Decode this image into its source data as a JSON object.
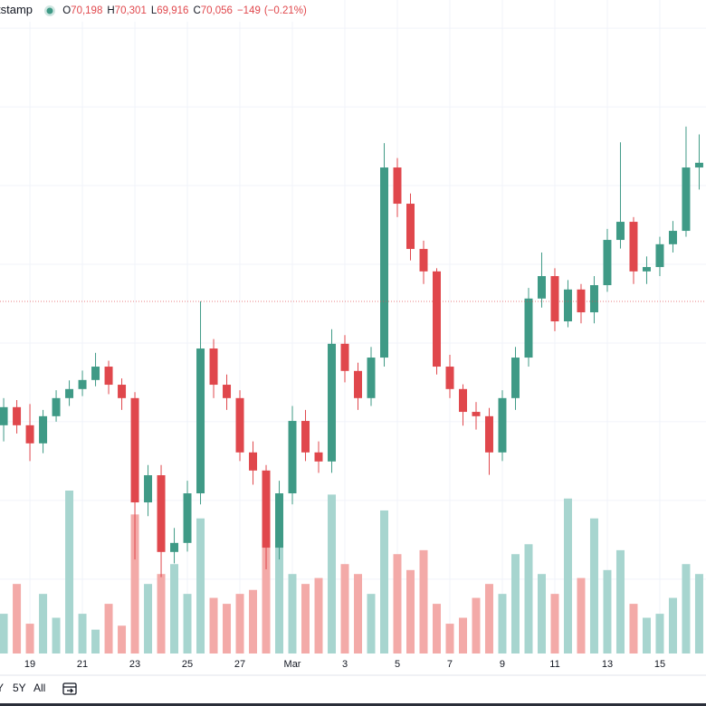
{
  "chart_data": {
    "type": "candlestick",
    "title": "tstamp",
    "ohlc": [
      {
        "name": "O",
        "value": 70198,
        "label": "70,198"
      },
      {
        "name": "H",
        "value": 70301,
        "label": "70,301"
      },
      {
        "name": "L",
        "value": 69916,
        "label": "69,916"
      },
      {
        "name": "C",
        "value": 70056,
        "label": "70,056"
      }
    ],
    "change": {
      "value": -149,
      "label": "−149"
    },
    "change_pct": {
      "value": -0.21,
      "label": "(−0.21%)"
    },
    "x": [
      0,
      0.5,
      1,
      1.5,
      2,
      2.5,
      3,
      3.5,
      4,
      4.5,
      5,
      5.5,
      6,
      6.5,
      7,
      7.5,
      8,
      8.5,
      9,
      9.5,
      10,
      10.5,
      11,
      11.5,
      12,
      12.5,
      13,
      13.5,
      14,
      14.5,
      15,
      15.5,
      16,
      16.5,
      17,
      17.5,
      18,
      18.5,
      19,
      19.5,
      20,
      20.5,
      21,
      21.5,
      22,
      22.5,
      23,
      23.5,
      24,
      24.5,
      25,
      25.5,
      26,
      26.5
    ],
    "open": [
      66910,
      67370,
      66910,
      66450,
      67140,
      67600,
      67830,
      68060,
      68400,
      67940,
      67600,
      64950,
      65640,
      63690,
      63920,
      65180,
      68860,
      67940,
      67600,
      66220,
      65760,
      63800,
      65180,
      67020,
      66220,
      65990,
      68980,
      68290,
      67600,
      68630,
      73460,
      72540,
      71390,
      70820,
      68400,
      67830,
      67250,
      67140,
      66220,
      67600,
      68630,
      70130,
      70700,
      69550,
      70360,
      69780,
      70470,
      71620,
      72080,
      70820,
      70930,
      71510,
      71850,
      73460
    ],
    "high": [
      67600,
      67550,
      67450,
      67300,
      67800,
      68050,
      68300,
      68750,
      68550,
      68100,
      67750,
      65900,
      65900,
      64300,
      65500,
      70060,
      69100,
      68200,
      67800,
      66500,
      65900,
      65500,
      67400,
      67300,
      66500,
      69350,
      69200,
      68500,
      68900,
      74080,
      73700,
      72800,
      71600,
      70900,
      68700,
      67950,
      67500,
      67350,
      67800,
      68900,
      70400,
      71300,
      70900,
      70600,
      70500,
      70700,
      71900,
      74100,
      72200,
      71200,
      71700,
      72100,
      74500,
      74300
    ],
    "low": [
      66500,
      66700,
      66000,
      66200,
      67000,
      67400,
      67650,
      67900,
      67700,
      67300,
      63500,
      64600,
      63050,
      63400,
      63700,
      64900,
      67600,
      67300,
      66000,
      65400,
      63250,
      63500,
      64900,
      66000,
      65700,
      65700,
      68000,
      67300,
      67400,
      68400,
      72200,
      71100,
      70500,
      68200,
      67600,
      66900,
      66800,
      65650,
      66000,
      67300,
      68400,
      69900,
      69300,
      69400,
      69500,
      69500,
      70300,
      71400,
      70500,
      70500,
      70700,
      71300,
      71700,
      72900
    ],
    "close": [
      67370,
      66910,
      66450,
      67140,
      67600,
      67830,
      68060,
      68400,
      67940,
      67600,
      64950,
      65640,
      63690,
      63920,
      65180,
      68860,
      67940,
      67600,
      66220,
      65760,
      63800,
      65180,
      67020,
      66220,
      65990,
      68980,
      68290,
      67600,
      68630,
      73460,
      72540,
      71390,
      70820,
      68400,
      67830,
      67250,
      67140,
      66220,
      67600,
      68630,
      70130,
      70700,
      69550,
      70360,
      69780,
      70470,
      71620,
      72080,
      70820,
      70930,
      71510,
      71850,
      73460,
      73580
    ],
    "volumes": [
      20,
      35,
      15,
      30,
      18,
      82,
      20,
      12,
      25,
      14,
      70,
      35,
      40,
      45,
      30,
      68,
      28,
      25,
      30,
      32,
      62,
      55,
      40,
      35,
      38,
      80,
      45,
      40,
      30,
      72,
      50,
      42,
      52,
      25,
      15,
      18,
      28,
      35,
      30,
      50,
      55,
      40,
      30,
      78,
      38,
      68,
      42,
      52,
      25,
      18,
      20,
      28,
      45,
      40
    ],
    "up_color": "#3f9a86",
    "down_color": "#e0474c",
    "volume_up_color": "#a7d5cf",
    "volume_down_color": "#f3aaa8",
    "xlim": [
      -0.14,
      26.76
    ],
    "ylim": [
      61110,
      77716
    ],
    "yticks": [
      63000,
      65000,
      67000,
      69000,
      71000,
      73000,
      75000,
      77000
    ],
    "xticks": [
      {
        "value": 1,
        "label": "19"
      },
      {
        "value": 3,
        "label": "21"
      },
      {
        "value": 5,
        "label": "23"
      },
      {
        "value": 7,
        "label": "25"
      },
      {
        "value": 9,
        "label": "27"
      },
      {
        "value": 11,
        "label": "Mar"
      },
      {
        "value": 13,
        "label": "3"
      },
      {
        "value": 15,
        "label": "5"
      },
      {
        "value": 17,
        "label": "7"
      },
      {
        "value": 19,
        "label": "9"
      },
      {
        "value": 21,
        "label": "11"
      },
      {
        "value": 23,
        "label": "13"
      },
      {
        "value": 25,
        "label": "15"
      }
    ],
    "grid": true,
    "range_buttons": [
      "Y",
      "5Y",
      "All"
    ]
  }
}
